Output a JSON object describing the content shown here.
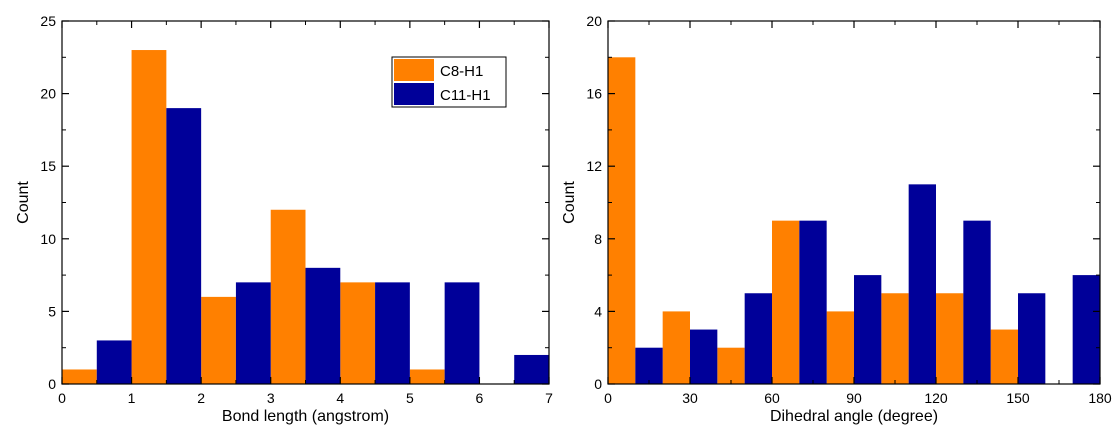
{
  "chart_data": [
    {
      "type": "bar",
      "title": "",
      "xlabel": "Bond length (angstrom)",
      "ylabel": "Count",
      "xlim": [
        0,
        7
      ],
      "ylim": [
        0,
        25
      ],
      "xticks": [
        "0",
        "1",
        "2",
        "3",
        "4",
        "5",
        "6",
        "7"
      ],
      "yticks": [
        "0",
        "5",
        "10",
        "15",
        "20",
        "25"
      ],
      "bin_width": 1,
      "bin_starts": [
        0,
        1,
        2,
        3,
        4,
        5,
        6
      ],
      "series": [
        {
          "name": "C8-H1",
          "color": "#FF8000",
          "values": [
            1,
            23,
            6,
            12,
            7,
            1,
            0
          ]
        },
        {
          "name": "C11-H1",
          "color": "#000099",
          "values": [
            3,
            19,
            7,
            8,
            7,
            7,
            2
          ]
        }
      ],
      "legend": {
        "position": "top-right"
      },
      "grid": false
    },
    {
      "type": "bar",
      "title": "",
      "xlabel": "Dihedral angle (degree)",
      "ylabel": "Count",
      "xlim": [
        0,
        180
      ],
      "ylim": [
        0,
        20
      ],
      "xticks": [
        "0",
        "30",
        "60",
        "90",
        "120",
        "150",
        "180"
      ],
      "yticks": [
        "0",
        "4",
        "8",
        "12",
        "16",
        "20"
      ],
      "bin_width": 20,
      "bin_starts": [
        0,
        20,
        40,
        60,
        80,
        100,
        120,
        140,
        160
      ],
      "series": [
        {
          "name": "C8-H1",
          "color": "#FF8000",
          "values": [
            18,
            4,
            2,
            9,
            4,
            5,
            5,
            3,
            0
          ]
        },
        {
          "name": "C11-H1",
          "color": "#000099",
          "values": [
            2,
            3,
            5,
            9,
            6,
            11,
            9,
            5,
            6
          ]
        }
      ],
      "grid": false
    }
  ]
}
